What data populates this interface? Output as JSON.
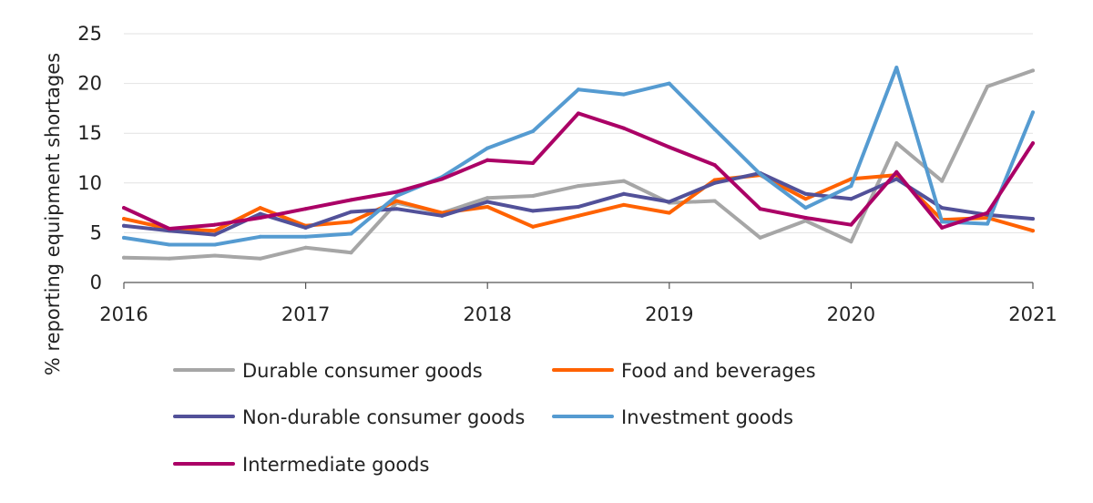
{
  "chart_data": {
    "type": "line",
    "title": "",
    "xlabel": "",
    "ylabel": "% reporting equipment shortages",
    "xlim": [
      2016,
      2021
    ],
    "ylim": [
      0,
      25
    ],
    "xticks": [
      "2016",
      "2017",
      "2018",
      "2019",
      "2020",
      "2021"
    ],
    "yticks": [
      "0",
      "5",
      "10",
      "15",
      "20",
      "25"
    ],
    "grid": "horizontal",
    "legend_position": "bottom",
    "x": [
      2016,
      2016.25,
      2016.5,
      2016.75,
      2017,
      2017.25,
      2017.5,
      2017.75,
      2018,
      2018.25,
      2018.5,
      2018.75,
      2019,
      2019.25,
      2019.5,
      2019.75,
      2020,
      2020.25,
      2020.5,
      2020.75,
      2021
    ],
    "series": [
      {
        "name": "Durable consumer goods",
        "color": "#a6a6a6",
        "values": [
          2.5,
          2.4,
          2.7,
          2.4,
          3.5,
          3.0,
          8.0,
          7.0,
          8.5,
          8.7,
          9.7,
          10.2,
          8.0,
          8.2,
          4.5,
          6.2,
          4.1,
          14.0,
          10.2,
          19.7,
          21.3
        ]
      },
      {
        "name": "Food and beverages",
        "color": "#ff6200",
        "values": [
          6.4,
          5.4,
          5.2,
          7.5,
          5.7,
          6.1,
          8.2,
          7.0,
          7.6,
          5.6,
          6.7,
          7.8,
          7.0,
          10.3,
          10.8,
          8.4,
          10.4,
          10.8,
          6.3,
          6.5,
          5.2
        ]
      },
      {
        "name": "Non-durable consumer goods",
        "color": "#525199",
        "values": [
          5.7,
          5.2,
          4.8,
          6.9,
          5.5,
          7.1,
          7.4,
          6.7,
          8.1,
          7.2,
          7.6,
          8.9,
          8.1,
          10.0,
          11.0,
          8.9,
          8.4,
          10.4,
          7.5,
          6.8,
          6.4
        ]
      },
      {
        "name": "Investment goods",
        "color": "#559bd1",
        "values": [
          4.5,
          3.8,
          3.8,
          4.6,
          4.6,
          4.9,
          8.7,
          10.6,
          13.5,
          15.2,
          19.4,
          18.9,
          20.0,
          15.4,
          10.9,
          7.5,
          9.7,
          21.6,
          6.1,
          5.9,
          17.1
        ]
      },
      {
        "name": "Intermediate goods",
        "color": "#ab0066",
        "values": [
          7.5,
          5.4,
          5.8,
          6.5,
          7.4,
          8.3,
          9.1,
          10.4,
          12.3,
          12.0,
          17.0,
          15.5,
          13.6,
          11.8,
          7.4,
          6.5,
          5.8,
          11.1,
          5.5,
          7.0,
          14.0
        ]
      }
    ]
  }
}
